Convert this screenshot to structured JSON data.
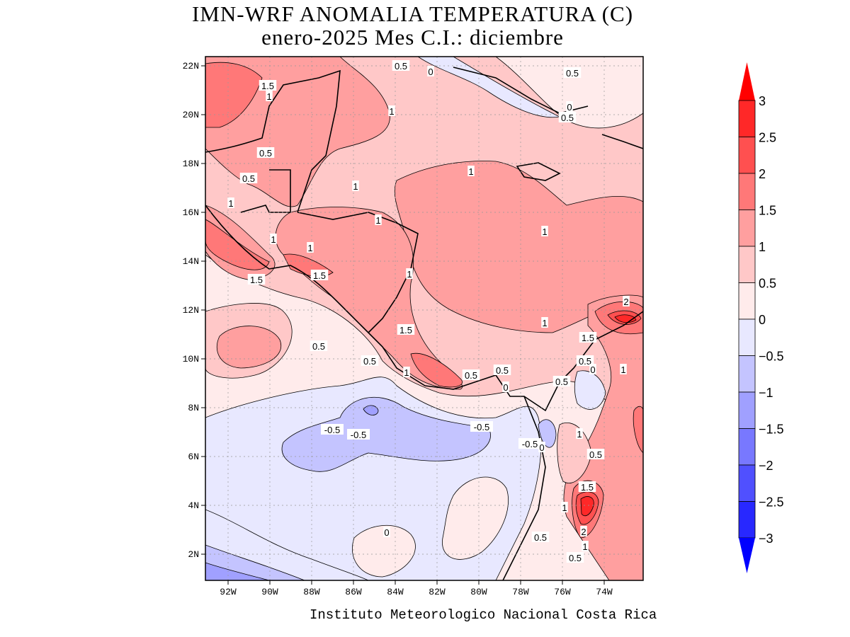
{
  "title": {
    "line1": "IMN-WRF  ANOMALIA TEMPERATURA (C)",
    "line2": "enero-2025 Mes C.I.: diciembre"
  },
  "footer": "Instituto Meteorologico Nacional Costa Rica",
  "map": {
    "variable": "temperature anomaly",
    "units": "C",
    "lon_ticks": [
      "92W",
      "90W",
      "88W",
      "86W",
      "84W",
      "82W",
      "80W",
      "78W",
      "76W",
      "74W"
    ],
    "lat_ticks": [
      "22N",
      "20N",
      "18N",
      "16N",
      "14N",
      "12N",
      "10N",
      "8N",
      "6N",
      "4N",
      "2N"
    ],
    "contour_labels": [
      "0.5",
      "0",
      "0.5",
      "1.5",
      "1",
      "1",
      "0",
      "0.5",
      "0.5",
      "0.5",
      "1",
      "1",
      "1",
      "1",
      "1",
      "1",
      "1",
      "1.5",
      "1.5",
      "1",
      "2",
      "1",
      "1.5",
      "1.5",
      "0.5",
      "0.5",
      "0.5",
      "0",
      "1",
      "1",
      "0.5",
      "0.5",
      "0",
      "0.5",
      "-0.5",
      "-0.5",
      "-0.5",
      "1",
      "-0.5",
      "0",
      "0.5",
      "1.5",
      "1",
      "0",
      "2",
      "0.5",
      "1",
      "0.5"
    ]
  },
  "colorbar": {
    "labels": [
      "3",
      "2.5",
      "2",
      "1.5",
      "1",
      "0.5",
      "0",
      "−0.5",
      "−1",
      "−1.5",
      "−2",
      "−2.5",
      "−3"
    ],
    "colors": [
      "#ff2828",
      "#ff5050",
      "#ff7878",
      "#ff9f9f",
      "#ffc8c8",
      "#ffebeb",
      "#e8e8ff",
      "#c4c4ff",
      "#a0a0ff",
      "#7878ff",
      "#5050ff",
      "#2828ff"
    ],
    "over_color": "#ff0000",
    "under_color": "#0000ff"
  }
}
